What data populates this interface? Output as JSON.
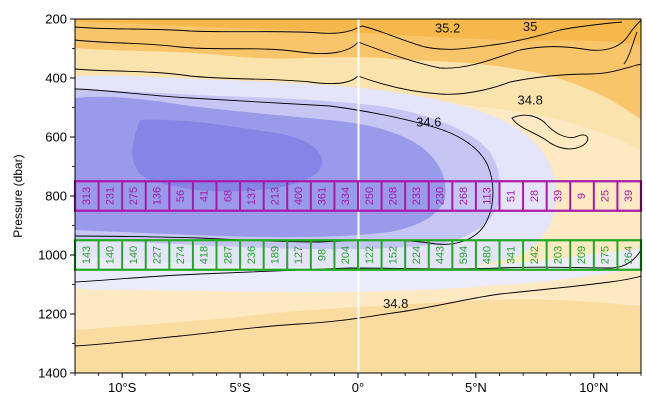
{
  "chart_data": {
    "type": "heatmap",
    "title": "",
    "xlabel": "",
    "ylabel": "Pressure (dbar)",
    "xlim": [
      -12,
      12
    ],
    "ylim": [
      1400,
      200
    ],
    "y_inverted": true,
    "xticks": [
      {
        "value": -10,
        "label": "10°S"
      },
      {
        "value": -5,
        "label": "5°S"
      },
      {
        "value": 0,
        "label": "0°"
      },
      {
        "value": 5,
        "label": "5°N"
      },
      {
        "value": 10,
        "label": "10°N"
      }
    ],
    "yticks": [
      {
        "value": 200,
        "label": "200"
      },
      {
        "value": 400,
        "label": "400"
      },
      {
        "value": 600,
        "label": "600"
      },
      {
        "value": 800,
        "label": "800"
      },
      {
        "value": 1000,
        "label": "1000"
      },
      {
        "value": 1200,
        "label": "1200"
      },
      {
        "value": 1400,
        "label": "1400"
      }
    ],
    "variable": "salinity",
    "colors": {
      "high_salinity": "#f6b84a",
      "mid_high": "#fbe0a8",
      "neutral": "#ffffff",
      "mid_low": "#d8d8fb",
      "low_salinity": "#8a8ae8",
      "lowest": "#7a7ae6",
      "contour_line": "#000000",
      "equator_line": "#ffffff"
    },
    "contour_labels": [
      {
        "text": "35.2",
        "lon": 3.8,
        "p": 245
      },
      {
        "text": "35",
        "lon": 7.3,
        "p": 240
      },
      {
        "text": "34.8",
        "lon": 7.3,
        "p": 490
      },
      {
        "text": "34.6",
        "lon": 3.0,
        "p": 565
      },
      {
        "text": "34.8",
        "lon": 1.6,
        "p": 1180
      }
    ],
    "bands": [
      {
        "name": "",
        "color": "#aa18aa",
        "p_top": 750,
        "p_bottom": 850,
        "counts": [
          313,
          231,
          275,
          136,
          56,
          41,
          68,
          137,
          213,
          400,
          361,
          334,
          250,
          208,
          233,
          230,
          268,
          113,
          51,
          28,
          39,
          9,
          25,
          39
        ]
      },
      {
        "name": "",
        "color": "#22a822",
        "p_top": 950,
        "p_bottom": 1050,
        "counts": [
          143,
          140,
          140,
          227,
          274,
          418,
          287,
          236,
          189,
          127,
          98,
          204,
          122,
          152,
          224,
          443,
          594,
          480,
          341,
          242,
          203,
          209,
          275,
          264
        ]
      }
    ]
  }
}
